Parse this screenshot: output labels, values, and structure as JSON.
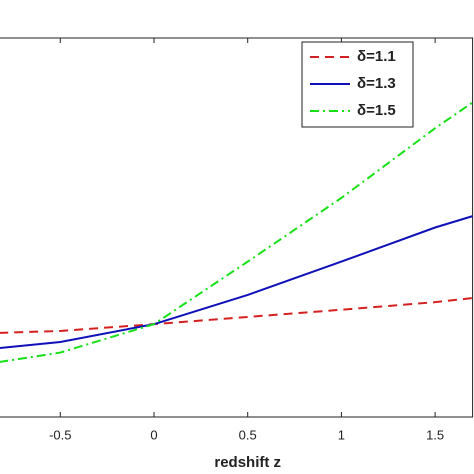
{
  "chart_data": {
    "type": "line",
    "x_label": "redshift z",
    "x": [
      -0.826,
      -0.5,
      0,
      0.5,
      1,
      1.5,
      1.7
    ],
    "series": [
      {
        "name": "δ=1.1",
        "color": "#d42020",
        "dash": "9,6",
        "values": [
          0.222,
          0.227,
          0.245,
          0.264,
          0.283,
          0.303,
          0.314
        ]
      },
      {
        "name": "δ=1.3",
        "color": "#1010b8",
        "dash": "none",
        "values": [
          0.182,
          0.198,
          0.245,
          0.322,
          0.41,
          0.5,
          0.53
        ]
      },
      {
        "name": "δ=1.5",
        "color": "#18e018",
        "dash": "9,4,2,4",
        "values": [
          0.145,
          0.17,
          0.245,
          0.41,
          0.578,
          0.762,
          0.83
        ]
      }
    ],
    "xlim": [
      -0.826,
      1.7
    ],
    "ylim": [
      0,
      1
    ],
    "xticks": [
      -0.5,
      0,
      0.5,
      1,
      1.5
    ],
    "legend": "upper-right"
  }
}
